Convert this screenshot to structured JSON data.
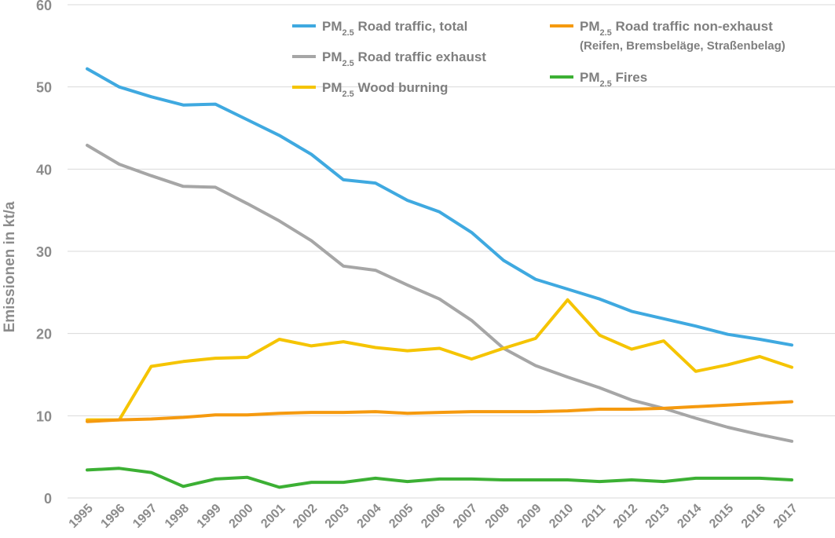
{
  "chart_data": {
    "type": "line",
    "ylabel": "Emissionen in kt/a",
    "ylim": [
      0,
      60
    ],
    "yticks": [
      0,
      10,
      20,
      30,
      40,
      50,
      60
    ],
    "grid": "horizontal",
    "legend_placement": "top-right",
    "categories": [
      "1995",
      "1996",
      "1997",
      "1998",
      "1999",
      "2000",
      "2001",
      "2002",
      "2003",
      "2004",
      "2005",
      "2006",
      "2007",
      "2008",
      "2009",
      "2010",
      "2011",
      "2012",
      "2013",
      "2014",
      "2015",
      "2016",
      "2017"
    ],
    "series": [
      {
        "name": "PM2.5 Road traffic, total",
        "legend_main": "PM",
        "legend_sub": "2.5",
        "legend_rest": " Road traffic, total",
        "color": "#3fa9e0",
        "values": [
          52.2,
          50.0,
          48.8,
          47.8,
          47.9,
          46.0,
          44.1,
          41.8,
          38.7,
          38.3,
          36.2,
          34.8,
          32.3,
          28.9,
          26.6,
          25.4,
          24.2,
          22.7,
          21.8,
          20.9,
          19.9,
          19.3,
          18.6
        ]
      },
      {
        "name": "PM2.5 Road traffic exhaust",
        "legend_main": "PM",
        "legend_sub": "2.5",
        "legend_rest": " Road traffic exhaust",
        "color": "#a6a6a6",
        "values": [
          42.9,
          40.6,
          39.2,
          37.9,
          37.8,
          35.8,
          33.7,
          31.3,
          28.2,
          27.7,
          25.9,
          24.2,
          21.6,
          18.2,
          16.1,
          14.7,
          13.4,
          11.9,
          10.9,
          9.7,
          8.6,
          7.7,
          6.9
        ]
      },
      {
        "name": "PM2.5 Wood burning",
        "legend_main": "PM",
        "legend_sub": "2.5",
        "legend_rest": " Wood burning",
        "color": "#f5c400",
        "values": [
          9.5,
          9.5,
          16.0,
          16.6,
          17.0,
          17.1,
          19.3,
          18.5,
          19.0,
          18.3,
          17.9,
          18.2,
          16.9,
          18.2,
          19.4,
          24.1,
          19.8,
          18.1,
          19.1,
          15.4,
          16.2,
          17.2,
          15.9
        ]
      },
      {
        "name": "PM2.5 Road traffic non-exhaust",
        "legend_main": "PM",
        "legend_sub": "2.5",
        "legend_rest": " Road traffic non-exhaust",
        "legend_note": "(Reifen, Bremsbeläge, Straßenbelag)",
        "color": "#f59a0f",
        "values": [
          9.3,
          9.5,
          9.6,
          9.8,
          10.1,
          10.1,
          10.3,
          10.4,
          10.4,
          10.5,
          10.3,
          10.4,
          10.5,
          10.5,
          10.5,
          10.6,
          10.8,
          10.8,
          10.9,
          11.1,
          11.3,
          11.5,
          11.7
        ]
      },
      {
        "name": "PM2.5 Fires",
        "legend_main": "PM",
        "legend_sub": "2.5",
        "legend_rest": " Fires",
        "color": "#3cb034",
        "values": [
          3.4,
          3.6,
          3.1,
          1.4,
          2.3,
          2.5,
          1.3,
          1.9,
          1.9,
          2.4,
          2.0,
          2.3,
          2.3,
          2.2,
          2.2,
          2.2,
          2.0,
          2.2,
          2.0,
          2.4,
          2.4,
          2.4,
          2.2
        ]
      }
    ]
  }
}
